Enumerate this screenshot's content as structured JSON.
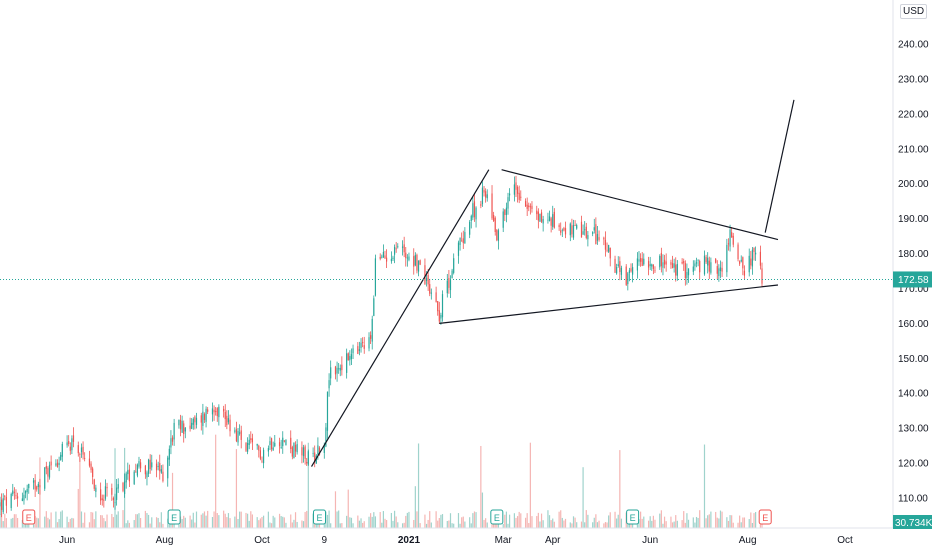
{
  "currency": "USD",
  "currency_partial": "2",
  "last_price_label": "172.58",
  "last_volume_label": "30.734K",
  "colors": {
    "up": "#26a69a",
    "down": "#ef5350",
    "volume_up": "#9fd3cc",
    "volume_down": "#f5b5b3",
    "drawing": "#131722",
    "last_price": "#26a69a",
    "earnings_green": "#26a69a",
    "earnings_red": "#ef5350",
    "axis_text": "#131722"
  },
  "earnings_markers": [
    {
      "label": "E",
      "x": "2020-05-08",
      "color": "red"
    },
    {
      "label": "E",
      "x": "2020-08-07",
      "color": "green"
    },
    {
      "label": "E",
      "x": "2020-11-06",
      "color": "green"
    },
    {
      "label": "E",
      "x": "2021-02-25",
      "color": "green"
    },
    {
      "label": "E",
      "x": "2021-05-21",
      "color": "green"
    },
    {
      "label": "E",
      "x": "2021-08-12",
      "color": "red"
    }
  ],
  "chart_data": {
    "type": "candlestick",
    "x_axis": {
      "type": "date",
      "range": [
        "2020-04-20",
        "2021-10-31"
      ],
      "ticks": [
        {
          "label": "Jun",
          "x": "2020-06-01"
        },
        {
          "label": "Aug",
          "x": "2020-08-01"
        },
        {
          "label": "Oct",
          "x": "2020-10-01"
        },
        {
          "label": "9",
          "x": "2020-11-09"
        },
        {
          "label": "2021",
          "x": "2021-01-01"
        },
        {
          "label": "Mar",
          "x": "2021-03-01"
        },
        {
          "label": "Apr",
          "x": "2021-04-01"
        },
        {
          "label": "Jun",
          "x": "2021-06-01"
        },
        {
          "label": "Aug",
          "x": "2021-08-01"
        },
        {
          "label": "Oct",
          "x": "2021-10-01"
        }
      ]
    },
    "y_axis": {
      "range": [
        105,
        250
      ],
      "ticks": [
        110,
        120,
        130,
        140,
        150,
        160,
        170,
        180,
        190,
        200,
        210,
        220,
        230,
        240
      ],
      "tick_labels": [
        "110.00",
        "120.00",
        "130.00",
        "140.00",
        "150.00",
        "160.00",
        "170.00",
        "180.00",
        "190.00",
        "200.00",
        "210.00",
        "220.00",
        "230.00",
        "240.00"
      ],
      "position": "right"
    },
    "last_price": 172.58,
    "price_path": [
      [
        "2020-04-20",
        108
      ],
      [
        "2020-05-08",
        112
      ],
      [
        "2020-05-20",
        118
      ],
      [
        "2020-06-05",
        127
      ],
      [
        "2020-06-20",
        112
      ],
      [
        "2020-06-29",
        110
      ],
      [
        "2020-07-15",
        120
      ],
      [
        "2020-07-31",
        117
      ],
      [
        "2020-08-07",
        130
      ],
      [
        "2020-08-20",
        131
      ],
      [
        "2020-09-01",
        137
      ],
      [
        "2020-09-10",
        132
      ],
      [
        "2020-09-20",
        125
      ],
      [
        "2020-10-01",
        123
      ],
      [
        "2020-10-10",
        128
      ],
      [
        "2020-10-20",
        124
      ],
      [
        "2020-10-31",
        121
      ],
      [
        "2020-11-09",
        126
      ],
      [
        "2020-11-12",
        145
      ],
      [
        "2020-11-25",
        150
      ],
      [
        "2020-12-08",
        155
      ],
      [
        "2020-12-11",
        177
      ],
      [
        "2020-12-25",
        182
      ],
      [
        "2021-01-05",
        178
      ],
      [
        "2021-01-15",
        170
      ],
      [
        "2021-01-20",
        163
      ],
      [
        "2021-02-01",
        182
      ],
      [
        "2021-02-10",
        192
      ],
      [
        "2021-02-18",
        198
      ],
      [
        "2021-02-25",
        186
      ],
      [
        "2021-03-08",
        200
      ],
      [
        "2021-03-20",
        191
      ],
      [
        "2021-04-01",
        189
      ],
      [
        "2021-04-15",
        186
      ],
      [
        "2021-04-30",
        185
      ],
      [
        "2021-05-10",
        177
      ],
      [
        "2021-05-17",
        171
      ],
      [
        "2021-05-25",
        179
      ],
      [
        "2021-06-08",
        177
      ],
      [
        "2021-06-20",
        175
      ],
      [
        "2021-07-05",
        177
      ],
      [
        "2021-07-15",
        175
      ],
      [
        "2021-07-21",
        185
      ],
      [
        "2021-07-30",
        176
      ],
      [
        "2021-08-05",
        180
      ],
      [
        "2021-08-10",
        172.58
      ]
    ],
    "drawings": [
      {
        "name": "rally-line",
        "points": [
          [
            "2020-11-01",
            119
          ],
          [
            "2021-02-20",
            204
          ]
        ]
      },
      {
        "name": "triangle-upper-line",
        "points": [
          [
            "2021-02-28",
            204
          ],
          [
            "2021-08-20",
            184
          ]
        ]
      },
      {
        "name": "triangle-lower-line",
        "points": [
          [
            "2021-01-20",
            160
          ],
          [
            "2021-08-20",
            171
          ]
        ]
      },
      {
        "name": "projection-line",
        "points": [
          [
            "2021-08-12",
            186
          ],
          [
            "2021-08-30",
            224
          ]
        ]
      }
    ]
  }
}
